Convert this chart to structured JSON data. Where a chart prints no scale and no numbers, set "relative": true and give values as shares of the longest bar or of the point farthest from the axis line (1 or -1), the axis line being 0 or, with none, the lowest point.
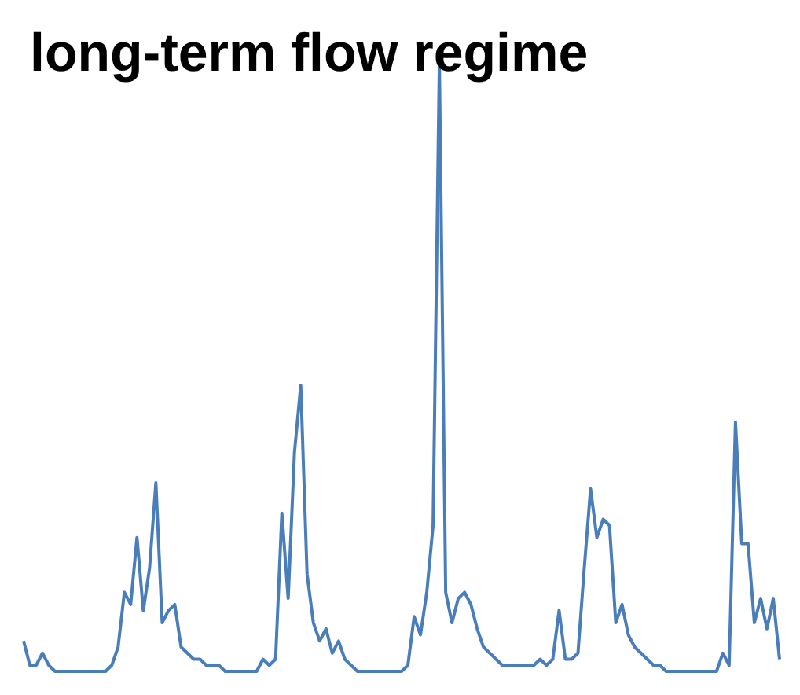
{
  "chart_data": {
    "type": "line",
    "title": "long-term flow regime",
    "relative": true,
    "categories": [
      null,
      null,
      null,
      null,
      null,
      null,
      null,
      null,
      null,
      null,
      null,
      null,
      null,
      null,
      null,
      null,
      null,
      null,
      null,
      null,
      null,
      null,
      null,
      null,
      null,
      null,
      null,
      null,
      null,
      null,
      null,
      null,
      null,
      null,
      null,
      null,
      null,
      null,
      null,
      null,
      null,
      null,
      null,
      null,
      null,
      null,
      null,
      null,
      null,
      null,
      null,
      null,
      null,
      null,
      null,
      null,
      null,
      null,
      null,
      null,
      null,
      null,
      null,
      null,
      null,
      null,
      null,
      null,
      null,
      null,
      null,
      null,
      null,
      null,
      null,
      null,
      null,
      null,
      null,
      null,
      null,
      null,
      null,
      null,
      null,
      null,
      null,
      null,
      null,
      null,
      null,
      null,
      null,
      null,
      null,
      null,
      null,
      null,
      null,
      null,
      null,
      null,
      null,
      null,
      null,
      null,
      null,
      null,
      null,
      null,
      null,
      null,
      null,
      null,
      null,
      null,
      null,
      null,
      null,
      null,
      null
    ],
    "series": [
      {
        "color": "#4a7ebb",
        "values": [
          0.05,
          0.01,
          0.01,
          0.03,
          0.01,
          0,
          0,
          0,
          0,
          0,
          0,
          0,
          0,
          0,
          0.01,
          0.04,
          0.13,
          0.11,
          0.22,
          0.1,
          0.17,
          0.31,
          0.08,
          0.1,
          0.11,
          0.04,
          0.03,
          0.02,
          0.02,
          0.01,
          0.01,
          0.01,
          0,
          0,
          0,
          0,
          0,
          0,
          0.02,
          0.01,
          0.02,
          0.26,
          0.12,
          0.36,
          0.47,
          0.16,
          0.08,
          0.05,
          0.07,
          0.03,
          0.05,
          0.02,
          0.01,
          0,
          0,
          0,
          0,
          0,
          0,
          0,
          0,
          0.01,
          0.09,
          0.06,
          0.13,
          0.24,
          1,
          0.13,
          0.08,
          0.12,
          0.13,
          0.11,
          0.07,
          0.04,
          0.03,
          0.02,
          0.01,
          0.01,
          0.01,
          0.01,
          0.01,
          0.01,
          0.02,
          0.01,
          0.02,
          0.1,
          0.02,
          0.02,
          0.03,
          0.17,
          0.3,
          0.22,
          0.25,
          0.24,
          0.08,
          0.11,
          0.06,
          0.04,
          0.03,
          0.02,
          0.01,
          0.01,
          0,
          0,
          0,
          0,
          0,
          0,
          0,
          0,
          0,
          0.03,
          0.01,
          0.41,
          0.21,
          0.21,
          0.08,
          0.12,
          0.07,
          0.12,
          0.02
        ]
      }
    ]
  }
}
